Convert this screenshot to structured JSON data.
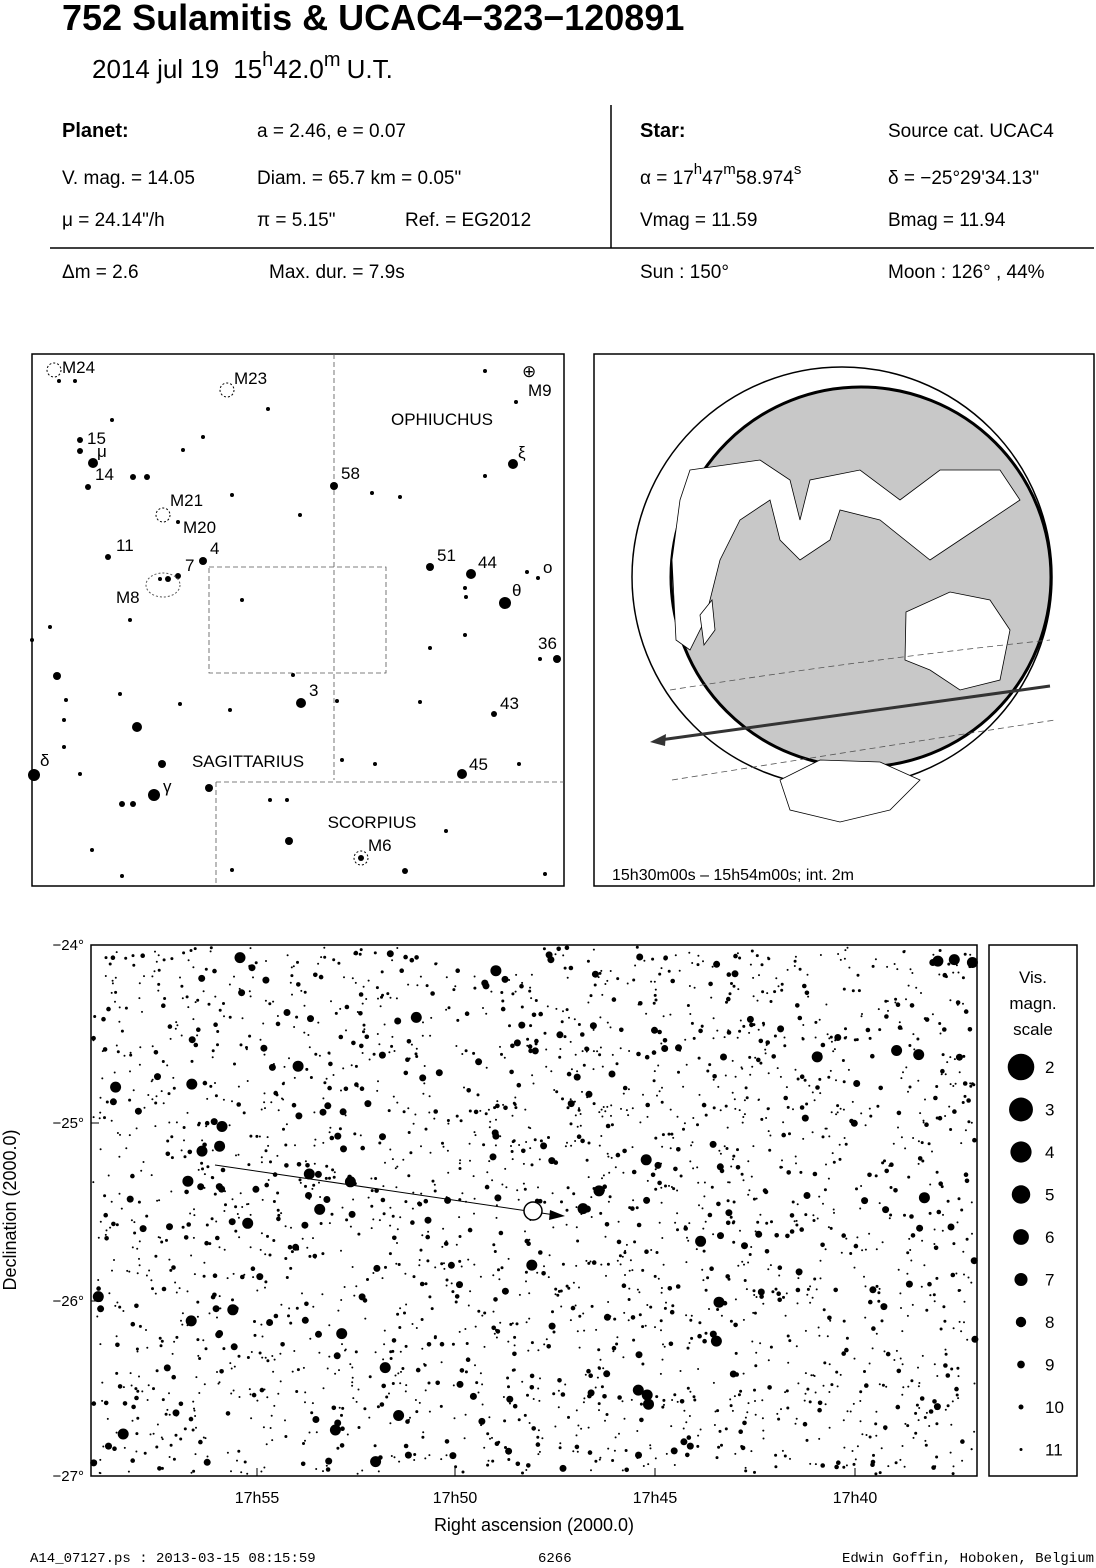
{
  "header": {
    "title": "752 Sulamitis  &  UCAC4−323−120891",
    "date": "2014 jul 19",
    "time": [
      "15",
      "h",
      "42.0",
      "m",
      "U.T."
    ]
  },
  "info": {
    "planet_label": "Planet:",
    "orbit": "a = 2.46, e = 0.07",
    "vmag": "V. mag. = 14.05",
    "diam": "Diam. = 65.7 km = 0.05\"",
    "mu": "μ =  24.14\"/h",
    "pi": "π =  5.15\"",
    "ref": "Ref. = EG2012",
    "star_label": "Star:",
    "source": "Source cat.  UCAC4",
    "alpha": [
      "α = 17",
      "h",
      "47",
      "m",
      "58.974",
      "s"
    ],
    "delta": "δ = −25°29'34.13\"",
    "vmag_star": "Vmag = 11.59",
    "bmag": "Bmag = 11.94",
    "dm": "Δm = 2.6",
    "maxdur": "Max. dur. = 7.9s",
    "sun": "Sun : 150°",
    "moon": "Moon : 126° , 44%"
  },
  "finder": {
    "labels": [
      "M24",
      "M23",
      "⊕",
      "M9",
      "OPHIUCHUS",
      "15",
      "μ",
      "14",
      "ξ",
      "58",
      "M21",
      "M20",
      "11",
      "4",
      "51",
      "44",
      "ο",
      "7",
      "θ",
      "M8",
      "36",
      "3",
      "43",
      "δ",
      "SAGITTARIUS",
      "45",
      "γ",
      "SCORPIUS",
      "M6"
    ]
  },
  "globe": {
    "caption": "15h30m00s – 15h54m00s; int.  2m"
  },
  "star_chart": {
    "yticks": [
      "−24°",
      "−25°",
      "−26°",
      "−27°"
    ],
    "xticks": [
      "17h55",
      "17h50",
      "17h45",
      "17h40"
    ],
    "xlabel": "Right ascension (2000.0)",
    "ylabel": "Declination (2000.0)",
    "legend": {
      "title": [
        "Vis.",
        "magn.",
        "scale"
      ],
      "magnitudes": [
        2,
        3,
        4,
        5,
        6,
        7,
        8,
        9,
        10,
        11
      ]
    }
  },
  "footer": {
    "file": "A14_07127.ps : 2013-03-15 08:15:59",
    "number": "6266",
    "author": "Edwin Goffin, Hoboken, Belgium"
  }
}
